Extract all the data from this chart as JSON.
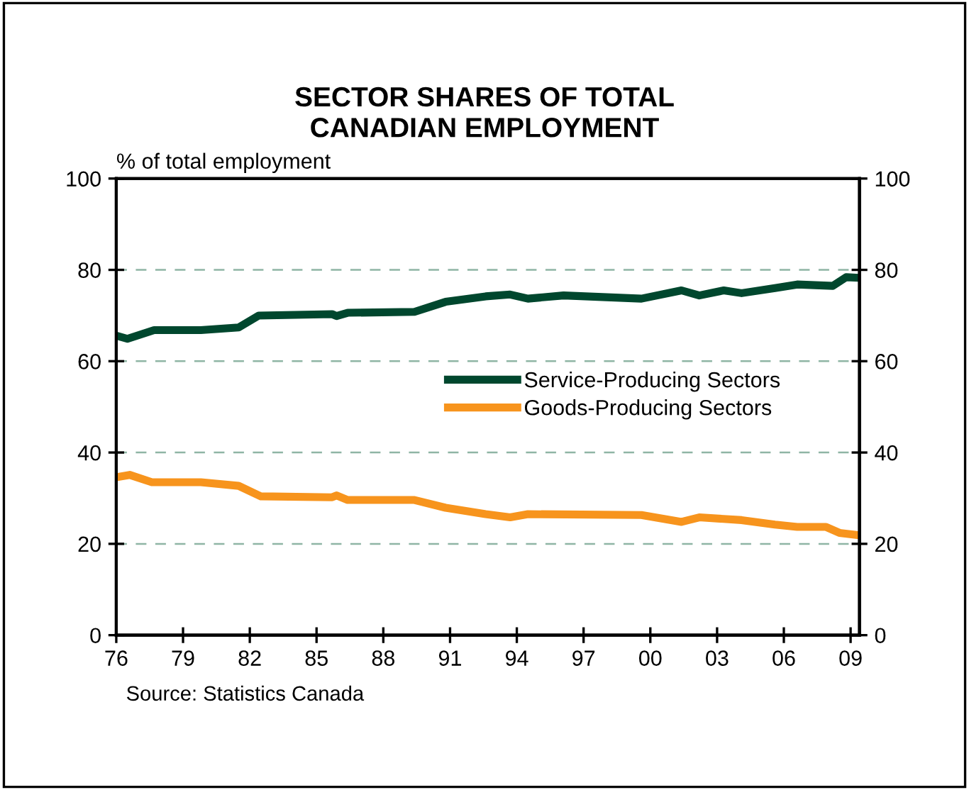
{
  "chart_data": {
    "type": "line",
    "title": "SECTOR SHARES OF TOTAL\nCANADIAN EMPLOYMENT",
    "ylabel": "% of total employment",
    "xlim": [
      1976,
      2009.4
    ],
    "xticks": [
      {
        "value": 1976,
        "label": "76"
      },
      {
        "value": 1979,
        "label": "79"
      },
      {
        "value": 1982,
        "label": "82"
      },
      {
        "value": 1985,
        "label": "85"
      },
      {
        "value": 1988,
        "label": "88"
      },
      {
        "value": 1991,
        "label": "91"
      },
      {
        "value": 1994,
        "label": "94"
      },
      {
        "value": 1997,
        "label": "97"
      },
      {
        "value": 2000,
        "label": "00"
      },
      {
        "value": 2003,
        "label": "03"
      },
      {
        "value": 2006,
        "label": "06"
      },
      {
        "value": 2009,
        "label": "09"
      }
    ],
    "ylim": [
      0,
      100
    ],
    "yticks": [
      0,
      20,
      40,
      60,
      80,
      100
    ],
    "y2lim": [
      0,
      100
    ],
    "y2ticks": [
      0,
      20,
      40,
      60,
      80,
      100
    ],
    "grid": "y",
    "legend": "center",
    "line_style": "solid",
    "marker": "none",
    "series": [
      {
        "name": "Service-Producing Sectors",
        "color": "#00472e",
        "x": [
          1976.0,
          1976.5,
          1977.7,
          1979.8,
          1981.5,
          1982.4,
          1985.7,
          1985.9,
          1986.4,
          1989.4,
          1990.8,
          1992.6,
          1993.7,
          1994.5,
          1996.1,
          1999.6,
          2001.4,
          2002.2,
          2003.3,
          2004.1,
          2005.6,
          2006.6,
          2008.2,
          2008.8,
          2009.2
        ],
        "values": [
          65.6,
          64.9,
          66.8,
          66.8,
          67.4,
          70.0,
          70.3,
          69.9,
          70.6,
          70.8,
          73.0,
          74.2,
          74.6,
          73.7,
          74.4,
          73.7,
          75.5,
          74.4,
          75.5,
          74.9,
          76.0,
          76.8,
          76.5,
          78.4,
          78.3
        ]
      },
      {
        "name": "Goods-Producing Sectors",
        "color": "#f7941d",
        "x": [
          1976.0,
          1976.6,
          1977.6,
          1979.8,
          1981.5,
          1982.5,
          1985.7,
          1985.9,
          1986.4,
          1989.4,
          1990.8,
          1992.6,
          1993.7,
          1994.5,
          1999.6,
          2001.4,
          2002.2,
          2004.1,
          2005.6,
          2006.6,
          2007.9,
          2008.5,
          2009.2
        ],
        "values": [
          34.6,
          35.1,
          33.5,
          33.5,
          32.7,
          30.4,
          30.2,
          30.6,
          29.6,
          29.6,
          27.9,
          26.5,
          25.8,
          26.5,
          26.3,
          24.8,
          25.8,
          25.2,
          24.2,
          23.7,
          23.7,
          22.4,
          22.0
        ]
      }
    ],
    "annotations": [
      "Source: Statistics Canada"
    ]
  }
}
